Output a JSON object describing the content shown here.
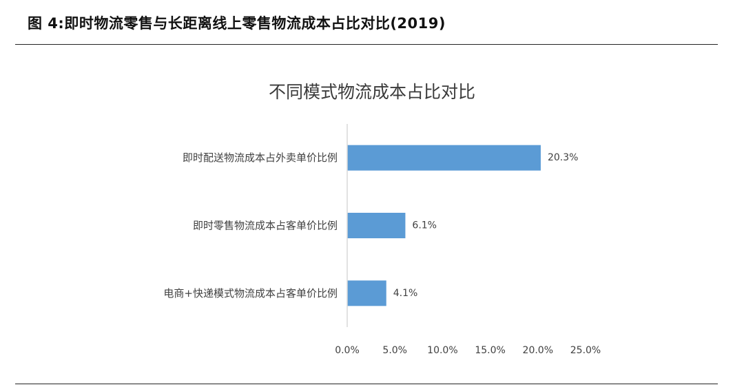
{
  "figure": {
    "caption": "图 4:即时物流零售与长距离线上零售物流成本占比对比(2019)"
  },
  "chart_data": {
    "type": "bar",
    "orientation": "horizontal",
    "title": "不同模式物流成本占比对比",
    "categories": [
      "即时配送物流成本占外卖单价比例",
      "即时零售物流成本占客单价比例",
      "电商+快递模式物流成本占客单价比例"
    ],
    "values": [
      20.3,
      6.1,
      4.1
    ],
    "data_labels": [
      "20.3%",
      "6.1%",
      "4.1%"
    ],
    "xlim": [
      0,
      25
    ],
    "x_ticks": [
      0,
      5,
      10,
      15,
      20,
      25
    ],
    "x_tick_labels": [
      "0.0%",
      "5.0%",
      "10.0%",
      "15.0%",
      "20.0%",
      "25.0%"
    ],
    "grid": false,
    "legend": "none",
    "colors": {
      "bar": "#5b9bd5",
      "axis": "#d9d9d9",
      "text": "#404040"
    }
  }
}
